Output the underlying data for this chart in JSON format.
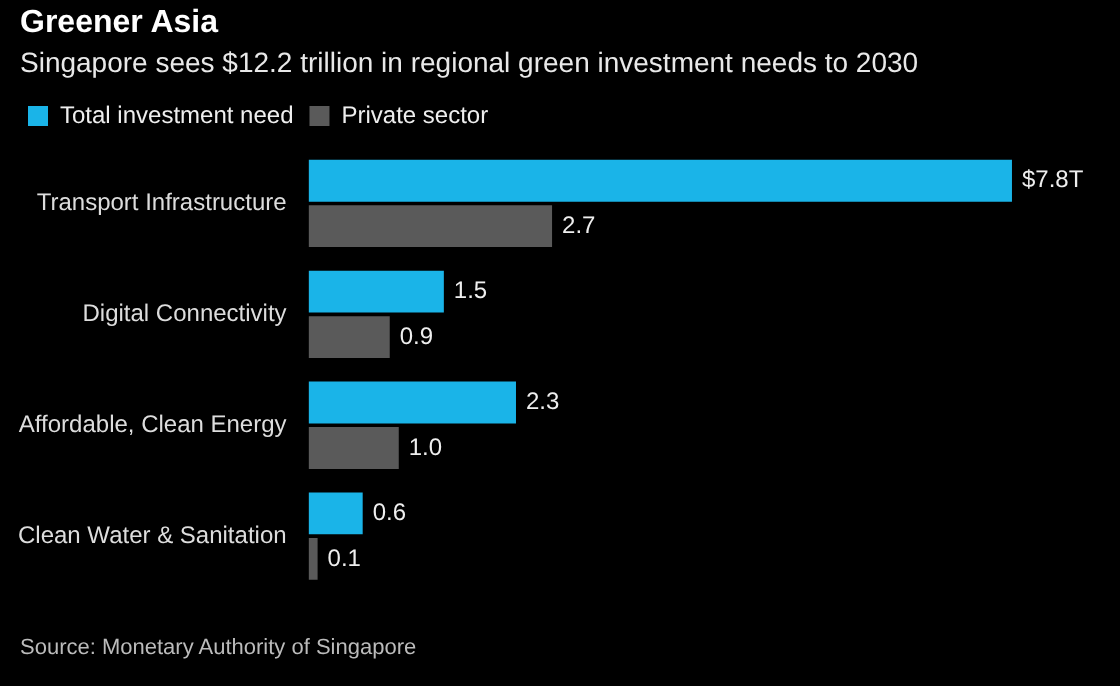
{
  "chart_data": {
    "type": "bar",
    "orientation": "horizontal",
    "title": "Greener Asia",
    "subtitle": "Singapore sees $12.2 trillion in regional green investment needs to 2030",
    "categories": [
      "Transport Infrastructure",
      "Digital Connectivity",
      "Affordable, Clean Energy",
      "Clean Water & Sanitation"
    ],
    "series": [
      {
        "name": "Total investment need",
        "color": "#1ab4e8",
        "values": [
          7.8,
          1.5,
          2.3,
          0.6
        ],
        "value_labels": [
          "$7.8T",
          "1.5",
          "2.3",
          "0.6"
        ]
      },
      {
        "name": "Private sector",
        "color": "#5a5a5a",
        "values": [
          2.7,
          0.9,
          1.0,
          0.1
        ],
        "value_labels": [
          "2.7",
          "0.9",
          "1.0",
          "0.1"
        ]
      }
    ],
    "legend": "top left",
    "tick_labels": "y",
    "annotations": [
      "Source: Monetary Authority of Singapore"
    ]
  }
}
